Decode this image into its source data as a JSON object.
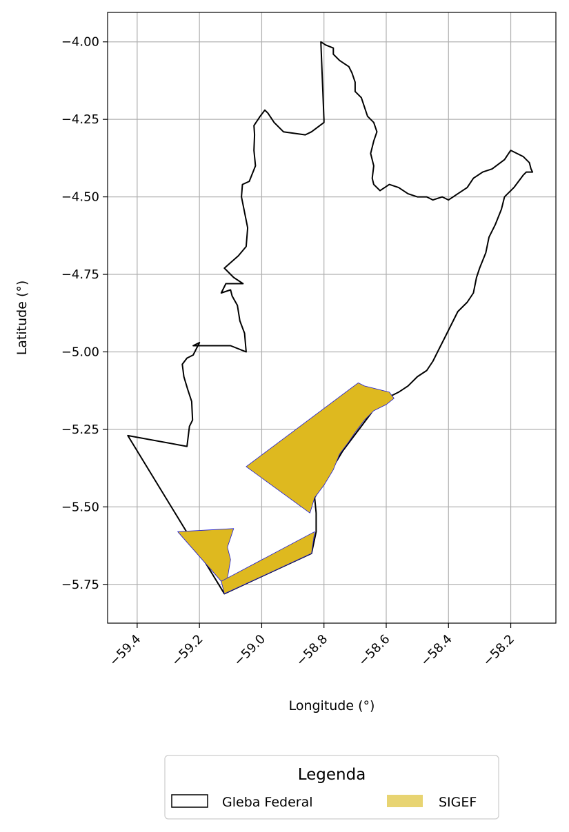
{
  "chart_data": {
    "type": "map",
    "xlabel": "Longitude (°)",
    "ylabel": "Latitude (°)",
    "xlim": [
      -59.495,
      -58.055
    ],
    "ylim": [
      -5.875,
      -3.905
    ],
    "x_ticks": [
      -59.4,
      -59.2,
      -59.0,
      -58.8,
      -58.6,
      -58.4,
      -58.2
    ],
    "x_tick_labels": [
      "−59.4",
      "−59.2",
      "−59.0",
      "−58.8",
      "−58.6",
      "−58.4",
      "−58.2"
    ],
    "y_ticks": [
      -4.0,
      -4.25,
      -4.5,
      -4.75,
      -5.0,
      -5.25,
      -5.5,
      -5.75
    ],
    "y_tick_labels": [
      "−4.00",
      "−4.25",
      "−4.50",
      "−4.75",
      "−5.00",
      "−5.25",
      "−5.50",
      "−5.75"
    ],
    "grid": true,
    "legend": {
      "title": "Legenda",
      "placement": "bottom-center",
      "entries": [
        {
          "label": "Gleba Federal",
          "style": "outline",
          "color": "#000000"
        },
        {
          "label": "SIGEF",
          "style": "fill",
          "color": "#e8d472"
        }
      ]
    },
    "layers": [
      {
        "name": "Gleba Federal",
        "fill": "none",
        "stroke": "#000000",
        "coords": [
          [
            -59.43,
            -5.27
          ],
          [
            -59.24,
            -5.305
          ],
          [
            -59.232,
            -5.24
          ],
          [
            -59.222,
            -5.22
          ],
          [
            -59.225,
            -5.16
          ],
          [
            -59.238,
            -5.12
          ],
          [
            -59.25,
            -5.08
          ],
          [
            -59.255,
            -5.04
          ],
          [
            -59.24,
            -5.02
          ],
          [
            -59.22,
            -5.01
          ],
          [
            -59.2,
            -4.97
          ],
          [
            -59.22,
            -4.98
          ],
          [
            -59.1,
            -4.98
          ],
          [
            -59.05,
            -5.0
          ],
          [
            -59.055,
            -4.94
          ],
          [
            -59.07,
            -4.9
          ],
          [
            -59.078,
            -4.85
          ],
          [
            -59.095,
            -4.82
          ],
          [
            -59.1,
            -4.8
          ],
          [
            -59.13,
            -4.81
          ],
          [
            -59.115,
            -4.78
          ],
          [
            -59.06,
            -4.78
          ],
          [
            -59.09,
            -4.76
          ],
          [
            -59.12,
            -4.73
          ],
          [
            -59.075,
            -4.69
          ],
          [
            -59.05,
            -4.66
          ],
          [
            -59.045,
            -4.6
          ],
          [
            -59.055,
            -4.55
          ],
          [
            -59.065,
            -4.5
          ],
          [
            -59.062,
            -4.46
          ],
          [
            -59.04,
            -4.45
          ],
          [
            -59.02,
            -4.4
          ],
          [
            -59.025,
            -4.35
          ],
          [
            -59.023,
            -4.3
          ],
          [
            -59.025,
            -4.27
          ],
          [
            -59.005,
            -4.24
          ],
          [
            -58.99,
            -4.22
          ],
          [
            -58.98,
            -4.23
          ],
          [
            -58.96,
            -4.26
          ],
          [
            -58.93,
            -4.29
          ],
          [
            -58.86,
            -4.3
          ],
          [
            -58.84,
            -4.29
          ],
          [
            -58.8,
            -4.26
          ],
          [
            -58.8,
            -4.25
          ],
          [
            -58.81,
            -4.0
          ],
          [
            -58.795,
            -4.01
          ],
          [
            -58.77,
            -4.02
          ],
          [
            -58.77,
            -4.04
          ],
          [
            -58.76,
            -4.05
          ],
          [
            -58.75,
            -4.06
          ],
          [
            -58.72,
            -4.08
          ],
          [
            -58.71,
            -4.1
          ],
          [
            -58.7,
            -4.13
          ],
          [
            -58.7,
            -4.16
          ],
          [
            -58.68,
            -4.18
          ],
          [
            -58.67,
            -4.21
          ],
          [
            -58.66,
            -4.24
          ],
          [
            -58.64,
            -4.26
          ],
          [
            -58.63,
            -4.29
          ],
          [
            -58.64,
            -4.32
          ],
          [
            -58.65,
            -4.36
          ],
          [
            -58.64,
            -4.4
          ],
          [
            -58.645,
            -4.44
          ],
          [
            -58.64,
            -4.46
          ],
          [
            -58.62,
            -4.48
          ],
          [
            -58.59,
            -4.46
          ],
          [
            -58.56,
            -4.47
          ],
          [
            -58.53,
            -4.49
          ],
          [
            -58.5,
            -4.5
          ],
          [
            -58.47,
            -4.5
          ],
          [
            -58.45,
            -4.51
          ],
          [
            -58.42,
            -4.5
          ],
          [
            -58.4,
            -4.51
          ],
          [
            -58.37,
            -4.49
          ],
          [
            -58.34,
            -4.47
          ],
          [
            -58.32,
            -4.44
          ],
          [
            -58.29,
            -4.42
          ],
          [
            -58.26,
            -4.41
          ],
          [
            -58.22,
            -4.38
          ],
          [
            -58.2,
            -4.35
          ],
          [
            -58.16,
            -4.37
          ],
          [
            -58.14,
            -4.39
          ],
          [
            -58.135,
            -4.41
          ],
          [
            -58.13,
            -4.42
          ],
          [
            -58.15,
            -4.42
          ],
          [
            -58.16,
            -4.43
          ],
          [
            -58.19,
            -4.47
          ],
          [
            -58.22,
            -4.5
          ],
          [
            -58.23,
            -4.54
          ],
          [
            -58.25,
            -4.59
          ],
          [
            -58.27,
            -4.63
          ],
          [
            -58.28,
            -4.68
          ],
          [
            -58.3,
            -4.73
          ],
          [
            -58.31,
            -4.76
          ],
          [
            -58.32,
            -4.81
          ],
          [
            -58.34,
            -4.84
          ],
          [
            -58.37,
            -4.87
          ],
          [
            -58.39,
            -4.91
          ],
          [
            -58.41,
            -4.95
          ],
          [
            -58.43,
            -4.99
          ],
          [
            -58.45,
            -5.03
          ],
          [
            -58.47,
            -5.06
          ],
          [
            -58.5,
            -5.08
          ],
          [
            -58.53,
            -5.11
          ],
          [
            -58.56,
            -5.13
          ],
          [
            -58.58,
            -5.14
          ],
          [
            -58.6,
            -5.15
          ],
          [
            -58.63,
            -5.17
          ],
          [
            -58.65,
            -5.2
          ],
          [
            -58.68,
            -5.24
          ],
          [
            -58.71,
            -5.28
          ],
          [
            -58.74,
            -5.32
          ],
          [
            -58.77,
            -5.37
          ],
          [
            -58.8,
            -5.42
          ],
          [
            -58.83,
            -5.47
          ],
          [
            -58.825,
            -5.52
          ],
          [
            -58.825,
            -5.58
          ],
          [
            -58.84,
            -5.65
          ],
          [
            -59.12,
            -5.78
          ],
          [
            -59.43,
            -5.27
          ]
        ]
      },
      {
        "name": "SIGEF",
        "fill": "#deb91f",
        "stroke": "#1a1adb",
        "polygons": [
          [
            [
              -59.05,
              -5.37
            ],
            [
              -58.69,
              -5.1
            ],
            [
              -58.67,
              -5.11
            ],
            [
              -58.63,
              -5.12
            ],
            [
              -58.59,
              -5.13
            ],
            [
              -58.575,
              -5.15
            ],
            [
              -58.6,
              -5.17
            ],
            [
              -58.64,
              -5.19
            ],
            [
              -58.67,
              -5.22
            ],
            [
              -58.7,
              -5.26
            ],
            [
              -58.72,
              -5.29
            ],
            [
              -58.75,
              -5.33
            ],
            [
              -58.77,
              -5.38
            ],
            [
              -58.8,
              -5.43
            ],
            [
              -58.83,
              -5.47
            ],
            [
              -58.845,
              -5.52
            ],
            [
              -59.05,
              -5.37
            ]
          ],
          [
            [
              -59.27,
              -5.58
            ],
            [
              -59.09,
              -5.57
            ],
            [
              -59.1,
              -5.6
            ],
            [
              -59.11,
              -5.63
            ],
            [
              -59.1,
              -5.67
            ],
            [
              -59.11,
              -5.73
            ],
            [
              -59.13,
              -5.74
            ],
            [
              -59.27,
              -5.58
            ]
          ],
          [
            [
              -59.13,
              -5.74
            ],
            [
              -58.83,
              -5.58
            ],
            [
              -58.84,
              -5.65
            ],
            [
              -59.12,
              -5.78
            ],
            [
              -59.13,
              -5.74
            ]
          ]
        ]
      }
    ]
  }
}
